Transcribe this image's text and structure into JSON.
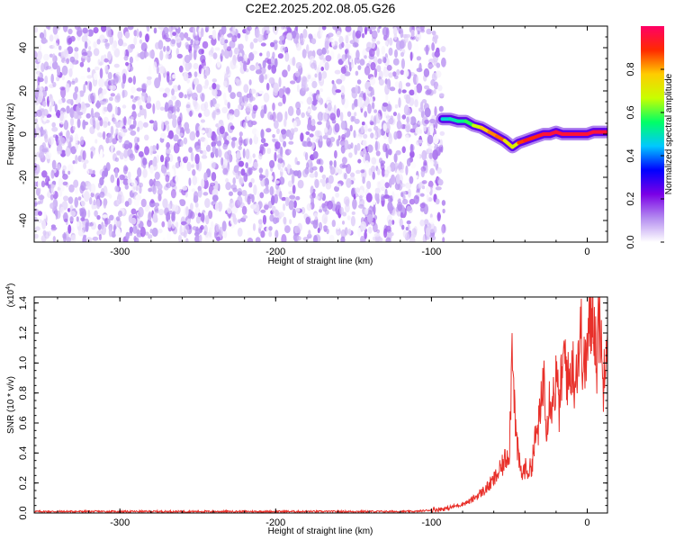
{
  "figure": {
    "title": "C2E2.2025.202.08.05.G26"
  },
  "chart_data": [
    {
      "type": "heatmap",
      "panel": "spectrogram",
      "xlabel": "Height of straight line (km)",
      "ylabel": "Frequency (Hz)",
      "xlim": [
        -355,
        13
      ],
      "ylim": [
        -50,
        50
      ],
      "x_ticks": [
        -300,
        -200,
        -100,
        0
      ],
      "x_tick_labels": [
        "-300",
        "-200",
        "-100",
        "0"
      ],
      "y_ticks": [
        -40,
        -20,
        0,
        20,
        40
      ],
      "y_tick_labels": [
        "-40",
        "-20",
        "0",
        "20",
        "40"
      ],
      "noise_region_x": [
        -355,
        -92
      ],
      "noise_amplitude_range": [
        0.0,
        0.15
      ],
      "signal_track": {
        "x": [
          -93,
          -88,
          -83,
          -78,
          -73,
          -68,
          -63,
          -58,
          -53,
          -48,
          -44,
          -40,
          -36,
          -32,
          -28,
          -24,
          -20,
          -16,
          -12,
          -8,
          -4,
          0,
          4,
          8,
          12
        ],
        "freq": [
          7,
          7,
          6,
          6,
          4,
          3,
          1,
          -1,
          -3,
          -6,
          -4,
          -3,
          -2,
          -1,
          0,
          0,
          1,
          0,
          0,
          0,
          0,
          0,
          1,
          1,
          1
        ],
        "amplitude": [
          0.45,
          0.5,
          0.5,
          0.55,
          0.6,
          0.75,
          0.8,
          0.85,
          0.85,
          0.6,
          0.8,
          0.95,
          0.9,
          0.9,
          0.95,
          0.95,
          0.95,
          0.95,
          0.95,
          0.95,
          0.95,
          0.95,
          0.95,
          0.95,
          0.95
        ]
      },
      "colorbar": {
        "label": "Normalized spectral amplitude",
        "range": [
          0.0,
          1.0
        ],
        "ticks": [
          0.0,
          0.2,
          0.4,
          0.6,
          0.8
        ],
        "tick_labels": [
          "0.0",
          "0.2",
          "0.4",
          "0.6",
          "0.8"
        ],
        "colors": [
          "#ffffff",
          "#b48cf0",
          "#7a00e6",
          "#0000ff",
          "#00c8ff",
          "#00ff66",
          "#c8ff00",
          "#ffcc00",
          "#ff2a00",
          "#ff0066"
        ]
      },
      "grid": false
    },
    {
      "type": "line",
      "panel": "snr",
      "xlabel": "Height of straight line (km)",
      "ylabel": "SNR (10 * v/v)",
      "y_multiplier_label": "(x10",
      "y_multiplier_exponent": "4",
      "y_multiplier_suffix": ")",
      "xlim": [
        -355,
        13
      ],
      "ylim": [
        0.0,
        1.44
      ],
      "x_ticks": [
        -300,
        -200,
        -100,
        0
      ],
      "x_tick_labels": [
        "-300",
        "-200",
        "-100",
        "0"
      ],
      "y_ticks": [
        0.0,
        0.2,
        0.4,
        0.6,
        0.8,
        1.0,
        1.2,
        1.4
      ],
      "y_tick_labels": [
        "0.0",
        "0.2",
        "0.4",
        "0.6",
        "0.8",
        "1.0",
        "1.2",
        "1.4"
      ],
      "series": [
        {
          "color": "#e8302a",
          "x": [
            -355,
            -300,
            -250,
            -200,
            -150,
            -110,
            -100,
            -90,
            -80,
            -75,
            -70,
            -65,
            -60,
            -55,
            -50,
            -48,
            -46,
            -44,
            -42,
            -40,
            -38,
            -36,
            -34,
            -32,
            -30,
            -28,
            -26,
            -24,
            -22,
            -20,
            -18,
            -16,
            -14,
            -12,
            -10,
            -8,
            -6,
            -4,
            -2,
            0,
            2,
            4,
            6,
            8,
            10,
            12
          ],
          "values": [
            0.01,
            0.01,
            0.01,
            0.01,
            0.01,
            0.01,
            0.02,
            0.03,
            0.06,
            0.08,
            0.12,
            0.16,
            0.22,
            0.3,
            0.42,
            1.2,
            0.55,
            0.35,
            0.25,
            0.3,
            0.28,
            0.3,
            0.45,
            0.55,
            0.65,
            0.95,
            0.6,
            0.8,
            0.75,
            0.9,
            0.7,
            0.95,
            1.05,
            0.85,
            1.0,
            0.9,
            1.05,
            1.2,
            0.95,
            1.1,
            1.25,
            1.42,
            1.0,
            1.4,
            0.8,
            1.25
          ]
        }
      ],
      "grid": false
    }
  ]
}
